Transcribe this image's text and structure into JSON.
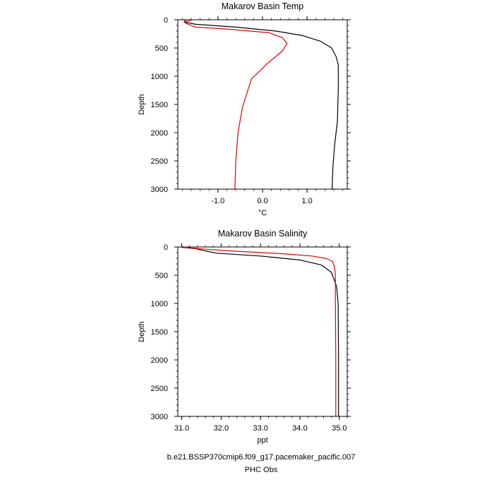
{
  "chart_data": [
    {
      "type": "line",
      "title": "Makarov Basin Temp",
      "xlabel": "°C",
      "ylabel": "Depth",
      "xlim": [
        -1.9,
        1.9
      ],
      "ylim": [
        3000,
        0
      ],
      "x_ticks": [
        -1.0,
        0.0,
        1.0
      ],
      "x_tick_labels": [
        "-1.0",
        "0.0",
        "1.0"
      ],
      "y_ticks": [
        0,
        500,
        1000,
        1500,
        2000,
        2500,
        3000
      ],
      "y_tick_labels": [
        "0",
        "500",
        "1000",
        "1500",
        "2000",
        "2500",
        "3000"
      ],
      "grid": false,
      "series": [
        {
          "name": "b.e21.BSSP370cmip6.f09_g17.pacemaker_pacific.007",
          "color": "#000000",
          "points": [
            {
              "x": -1.72,
              "y": 5
            },
            {
              "x": -1.76,
              "y": 40
            },
            {
              "x": -1.5,
              "y": 80
            },
            {
              "x": -0.6,
              "y": 130
            },
            {
              "x": 0.3,
              "y": 200
            },
            {
              "x": 0.9,
              "y": 280
            },
            {
              "x": 1.3,
              "y": 380
            },
            {
              "x": 1.55,
              "y": 500
            },
            {
              "x": 1.65,
              "y": 650
            },
            {
              "x": 1.7,
              "y": 800
            },
            {
              "x": 1.7,
              "y": 1200
            },
            {
              "x": 1.68,
              "y": 1800
            },
            {
              "x": 1.62,
              "y": 2200
            },
            {
              "x": 1.58,
              "y": 2600
            },
            {
              "x": 1.56,
              "y": 3000
            }
          ]
        },
        {
          "name": "PHC Obs",
          "color": "#e30000",
          "points": [
            {
              "x": -1.6,
              "y": 5
            },
            {
              "x": -1.75,
              "y": 45
            },
            {
              "x": -1.7,
              "y": 70
            },
            {
              "x": -1.5,
              "y": 130
            },
            {
              "x": -0.7,
              "y": 170
            },
            {
              "x": 0.15,
              "y": 230
            },
            {
              "x": 0.45,
              "y": 320
            },
            {
              "x": 0.55,
              "y": 420
            },
            {
              "x": 0.45,
              "y": 550
            },
            {
              "x": 0.1,
              "y": 780
            },
            {
              "x": -0.25,
              "y": 1050
            },
            {
              "x": -0.45,
              "y": 1550
            },
            {
              "x": -0.55,
              "y": 2000
            },
            {
              "x": -0.6,
              "y": 2500
            },
            {
              "x": -0.62,
              "y": 3000
            }
          ]
        }
      ]
    },
    {
      "type": "line",
      "title": "Makarov Basin Salinity",
      "xlabel": "ppt",
      "ylabel": "Depth",
      "xlim": [
        30.9,
        35.2
      ],
      "ylim": [
        3000,
        0
      ],
      "x_ticks": [
        31.0,
        32.0,
        33.0,
        34.0,
        35.0
      ],
      "x_tick_labels": [
        "31.0",
        "32.0",
        "33.0",
        "34.0",
        "35.0"
      ],
      "y_ticks": [
        0,
        500,
        1000,
        1500,
        2000,
        2500,
        3000
      ],
      "y_tick_labels": [
        "0",
        "500",
        "1000",
        "1500",
        "2000",
        "2500",
        "3000"
      ],
      "grid": false,
      "series": [
        {
          "name": "b.e21.BSSP370cmip6.f09_g17.pacemaker_pacific.007",
          "color": "#000000",
          "points": [
            {
              "x": 31.0,
              "y": 5
            },
            {
              "x": 31.35,
              "y": 30
            },
            {
              "x": 31.6,
              "y": 70
            },
            {
              "x": 31.9,
              "y": 110
            },
            {
              "x": 33.0,
              "y": 160
            },
            {
              "x": 34.0,
              "y": 230
            },
            {
              "x": 34.55,
              "y": 320
            },
            {
              "x": 34.8,
              "y": 450
            },
            {
              "x": 34.93,
              "y": 700
            },
            {
              "x": 34.97,
              "y": 1000
            },
            {
              "x": 34.98,
              "y": 2000
            },
            {
              "x": 34.98,
              "y": 3000
            }
          ]
        },
        {
          "name": "PHC Obs",
          "color": "#e30000",
          "points": [
            {
              "x": 31.05,
              "y": 5
            },
            {
              "x": 31.6,
              "y": 40
            },
            {
              "x": 32.5,
              "y": 80
            },
            {
              "x": 33.6,
              "y": 120
            },
            {
              "x": 34.3,
              "y": 160
            },
            {
              "x": 34.65,
              "y": 200
            },
            {
              "x": 34.82,
              "y": 250
            },
            {
              "x": 34.88,
              "y": 350
            },
            {
              "x": 34.9,
              "y": 500
            },
            {
              "x": 34.9,
              "y": 1000
            },
            {
              "x": 34.91,
              "y": 2000
            },
            {
              "x": 34.91,
              "y": 3000
            }
          ]
        }
      ]
    }
  ],
  "legend": {
    "items": [
      {
        "label": "b.e21.BSSP370cmip6.f09_g17.pacemaker_pacific.007",
        "color": "#000000"
      },
      {
        "label": "PHC Obs",
        "color": "#e30000"
      }
    ]
  }
}
